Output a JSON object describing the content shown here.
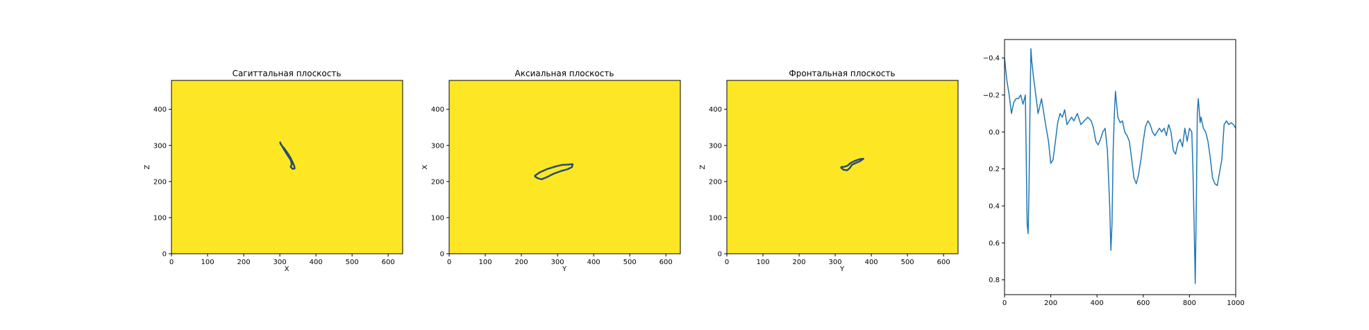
{
  "colors": {
    "panel_fill": "#fde725",
    "contour": "#2a4b6c",
    "contour_dark": "#26225a",
    "line": "#1f77b4",
    "axis": "#000000"
  },
  "chart_data": [
    {
      "type": "heatmap",
      "title": "Сагиттальная плоскость",
      "xlabel": "X",
      "ylabel": "Z",
      "xlim": [
        0,
        640
      ],
      "ylim": [
        480,
        0
      ],
      "xticks": [
        "0",
        "100",
        "200",
        "300",
        "400",
        "500",
        "600"
      ],
      "yticks": [
        "0",
        "100",
        "200",
        "300",
        "400"
      ],
      "background_color": "#fde725",
      "contour": [
        [
          300,
          310
        ],
        [
          303,
          302
        ],
        [
          312,
          292
        ],
        [
          322,
          278
        ],
        [
          330,
          265
        ],
        [
          336,
          252
        ],
        [
          340,
          243
        ],
        [
          341,
          236
        ],
        [
          335,
          235
        ],
        [
          330,
          241
        ],
        [
          333,
          248
        ],
        [
          330,
          260
        ],
        [
          322,
          272
        ],
        [
          313,
          286
        ],
        [
          305,
          300
        ],
        [
          300,
          310
        ]
      ]
    },
    {
      "type": "heatmap",
      "title": "Аксиальная плоскость",
      "xlabel": "Y",
      "ylabel": "X",
      "xlim": [
        0,
        640
      ],
      "ylim": [
        480,
        0
      ],
      "xticks": [
        "0",
        "100",
        "200",
        "300",
        "400",
        "500",
        "600"
      ],
      "yticks": [
        "0",
        "100",
        "200",
        "300",
        "400"
      ],
      "background_color": "#fde725",
      "contour": [
        [
          236,
          215
        ],
        [
          245,
          209
        ],
        [
          256,
          206
        ],
        [
          270,
          212
        ],
        [
          290,
          222
        ],
        [
          310,
          229
        ],
        [
          328,
          234
        ],
        [
          340,
          240
        ],
        [
          342,
          248
        ],
        [
          330,
          247
        ],
        [
          312,
          246
        ],
        [
          292,
          241
        ],
        [
          270,
          234
        ],
        [
          250,
          225
        ],
        [
          236,
          215
        ]
      ]
    },
    {
      "type": "heatmap",
      "title": "Фронтальная плоскость",
      "xlabel": "Y",
      "ylabel": "Z",
      "xlim": [
        0,
        640
      ],
      "ylim": [
        480,
        0
      ],
      "xticks": [
        "0",
        "100",
        "200",
        "300",
        "400",
        "500",
        "600"
      ],
      "yticks": [
        "0",
        "100",
        "200",
        "300",
        "400"
      ],
      "background_color": "#fde725",
      "contour": [
        [
          315,
          240
        ],
        [
          322,
          233
        ],
        [
          333,
          231
        ],
        [
          340,
          237
        ],
        [
          346,
          246
        ],
        [
          356,
          251
        ],
        [
          368,
          256
        ],
        [
          378,
          263
        ],
        [
          368,
          262
        ],
        [
          354,
          257
        ],
        [
          342,
          251
        ],
        [
          334,
          244
        ],
        [
          326,
          241
        ],
        [
          315,
          240
        ]
      ]
    },
    {
      "type": "line",
      "title": "",
      "xlabel": "",
      "ylabel": "",
      "xlim": [
        0,
        1000
      ],
      "ylim": [
        -0.5,
        0.88
      ],
      "xticks": [
        "0",
        "200",
        "400",
        "600",
        "800",
        "1000"
      ],
      "yticks": [
        "−0.4",
        "−0.2",
        "0.0",
        "0.2",
        "0.4",
        "0.6",
        "0.8"
      ],
      "grid": false,
      "series": [
        {
          "x": [
            0,
            10,
            20,
            30,
            40,
            50,
            60,
            70,
            80,
            90,
            98,
            102,
            106,
            110,
            114,
            118,
            125,
            135,
            145,
            160,
            175,
            190,
            200,
            210,
            220,
            230,
            240,
            250,
            260,
            270,
            280,
            290,
            300,
            315,
            330,
            345,
            360,
            375,
            385,
            395,
            405,
            415,
            425,
            435,
            445,
            455,
            460,
            465,
            470,
            475,
            480,
            490,
            500,
            510,
            520,
            530,
            540,
            550,
            560,
            570,
            580,
            590,
            600,
            610,
            620,
            630,
            640,
            650,
            660,
            670,
            680,
            690,
            700,
            710,
            720,
            730,
            740,
            750,
            760,
            770,
            780,
            790,
            800,
            810,
            815,
            820,
            825,
            830,
            834,
            838,
            842,
            846,
            850,
            860,
            870,
            880,
            890,
            900,
            910,
            920,
            930,
            940,
            945,
            950,
            960,
            970,
            980,
            990,
            1000
          ],
          "y": [
            -0.4,
            -0.28,
            -0.2,
            -0.1,
            -0.16,
            -0.18,
            -0.18,
            -0.2,
            -0.15,
            -0.2,
            0.5,
            0.55,
            0.3,
            -0.1,
            -0.45,
            -0.38,
            -0.3,
            -0.2,
            -0.1,
            -0.18,
            -0.06,
            0.05,
            0.17,
            0.15,
            0.05,
            -0.05,
            -0.1,
            -0.08,
            -0.12,
            -0.04,
            -0.06,
            -0.08,
            -0.06,
            -0.1,
            -0.04,
            -0.06,
            -0.08,
            -0.06,
            -0.02,
            0.05,
            0.07,
            0.04,
            0.0,
            -0.02,
            0.1,
            0.4,
            0.64,
            0.5,
            0.1,
            -0.1,
            -0.22,
            -0.08,
            -0.05,
            -0.06,
            0.0,
            0.02,
            0.05,
            0.15,
            0.25,
            0.28,
            0.23,
            0.15,
            0.05,
            -0.03,
            -0.06,
            -0.04,
            0.0,
            0.02,
            0.0,
            -0.02,
            0.0,
            -0.02,
            0.02,
            -0.04,
            0.0,
            0.1,
            0.12,
            0.06,
            0.04,
            0.08,
            -0.02,
            0.05,
            -0.02,
            0.0,
            0.2,
            0.5,
            0.82,
            0.35,
            -0.1,
            -0.18,
            -0.12,
            -0.05,
            -0.08,
            -0.02,
            0.0,
            0.05,
            0.14,
            0.25,
            0.28,
            0.29,
            0.22,
            0.15,
            0.05,
            -0.04,
            -0.06,
            -0.04,
            -0.05,
            -0.04,
            -0.02
          ]
        }
      ]
    }
  ]
}
